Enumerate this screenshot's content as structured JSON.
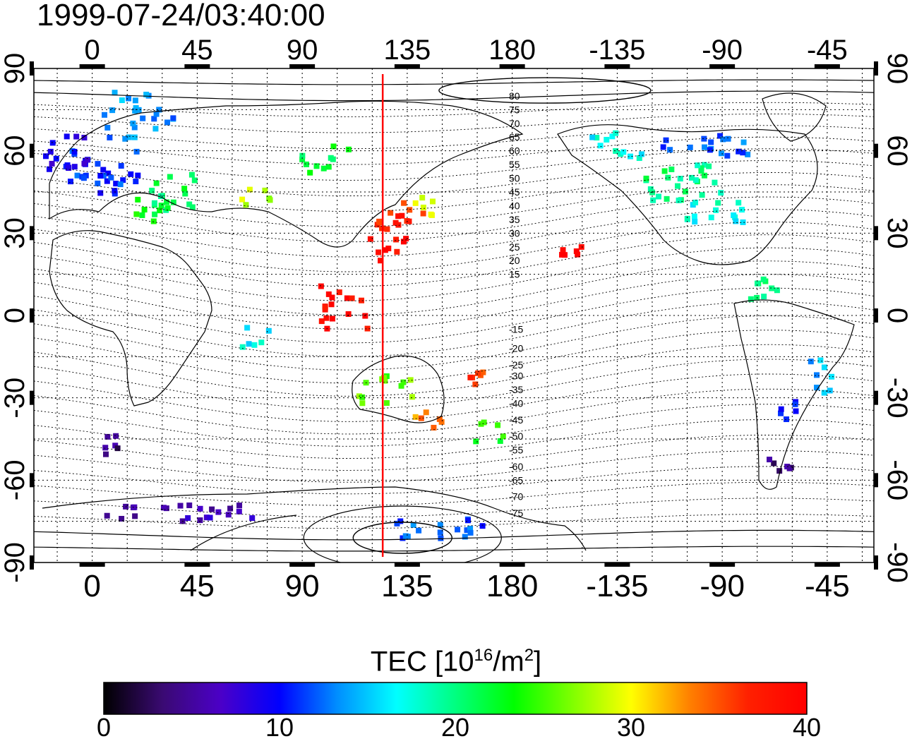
{
  "title": "1999-07-24/03:40:00",
  "map": {
    "top_lon_labels": [
      "0",
      "45",
      "90",
      "135",
      "180",
      "-135",
      "-90",
      "-45"
    ],
    "bottom_lon_labels": [
      "0",
      "45",
      "90",
      "135",
      "180",
      "-135",
      "-90",
      "-45"
    ],
    "left_lat_labels": [
      "90",
      "60",
      "30",
      "0",
      "-30",
      "-60",
      "-90"
    ],
    "right_lat_labels": [
      "90",
      "60",
      "30",
      "0",
      "-30",
      "-60",
      "-90"
    ],
    "lon_label_values": [
      0,
      45,
      90,
      135,
      180,
      225,
      270,
      315
    ],
    "lat_label_values": [
      90,
      60,
      30,
      0,
      -30,
      -60,
      -90
    ],
    "marker_longitude": 124.5,
    "marker_color": "#ff0000",
    "contour_labels_north": [
      "80",
      "75",
      "70",
      "65",
      "60",
      "55",
      "50",
      "45",
      "40",
      "35",
      "30",
      "25",
      "20",
      "15"
    ],
    "contour_labels_south": [
      "-15",
      "-20",
      "-25",
      "-30",
      "-35",
      "-40",
      "-45",
      "-50",
      "-55",
      "-60",
      "-65",
      "-70",
      "-75"
    ],
    "contour_label_lat_north": [
      80,
      75,
      70,
      65,
      60,
      55,
      50,
      45,
      40,
      35,
      30,
      25,
      20,
      15
    ],
    "contour_label_lat_south": [
      -5,
      -12,
      -18,
      -22,
      -27,
      -32,
      -38,
      -44,
      -49,
      -55,
      -60,
      -66,
      -72
    ]
  },
  "colorbar": {
    "title": "TEC  [10",
    "title_exp": "16",
    "title_mid": "/m",
    "title_exp2": "2",
    "title_end": "]",
    "min": 0,
    "max": 40,
    "tick_labels": [
      "0",
      "10",
      "20",
      "30",
      "40"
    ],
    "tick_values": [
      0,
      10,
      20,
      30,
      40
    ],
    "stops": [
      "#000000",
      "#3a0a72",
      "#4b00c8",
      "#0000ff",
      "#0090ff",
      "#00ffff",
      "#00ff80",
      "#00ff00",
      "#80ff00",
      "#ffff00",
      "#ff8000",
      "#ff2000",
      "#ff0000"
    ]
  },
  "tec_patches": [
    {
      "lon": 5,
      "lat": 52,
      "w": 30,
      "h": 18,
      "tec": 11
    },
    {
      "lon": -10,
      "lat": 60,
      "w": 20,
      "h": 14,
      "tec": 9
    },
    {
      "lon": 20,
      "lat": 70,
      "w": 30,
      "h": 12,
      "tec": 13
    },
    {
      "lon": 15,
      "lat": 80,
      "w": 20,
      "h": 5,
      "tec": 15
    },
    {
      "lon": 35,
      "lat": 45,
      "w": 20,
      "h": 14,
      "tec": 21
    },
    {
      "lon": 25,
      "lat": 38,
      "w": 16,
      "h": 10,
      "tec": 23
    },
    {
      "lon": 70,
      "lat": 43,
      "w": 16,
      "h": 6,
      "tec": 28
    },
    {
      "lon": 100,
      "lat": 57,
      "w": 20,
      "h": 10,
      "tec": 22
    },
    {
      "lon": 132,
      "lat": 36,
      "w": 22,
      "h": 12,
      "tec": 37
    },
    {
      "lon": 142,
      "lat": 40,
      "w": 14,
      "h": 8,
      "tec": 30
    },
    {
      "lon": 127,
      "lat": 25,
      "w": 16,
      "h": 10,
      "tec": 39
    },
    {
      "lon": 108,
      "lat": 3,
      "w": 20,
      "h": 16,
      "tec": 39
    },
    {
      "lon": 205,
      "lat": 23,
      "w": 10,
      "h": 5,
      "tec": 40
    },
    {
      "lon": 252,
      "lat": 48,
      "w": 36,
      "h": 14,
      "tec": 20
    },
    {
      "lon": 268,
      "lat": 38,
      "w": 26,
      "h": 10,
      "tec": 17
    },
    {
      "lon": 262,
      "lat": 62,
      "w": 40,
      "h": 8,
      "tec": 12
    },
    {
      "lon": 225,
      "lat": 62,
      "w": 22,
      "h": 10,
      "tec": 17
    },
    {
      "lon": 288,
      "lat": 10,
      "w": 12,
      "h": 14,
      "tec": 21
    },
    {
      "lon": 312,
      "lat": -22,
      "w": 10,
      "h": 14,
      "tec": 14
    },
    {
      "lon": 300,
      "lat": -35,
      "w": 10,
      "h": 8,
      "tec": 11
    },
    {
      "lon": 295,
      "lat": -55,
      "w": 12,
      "h": 6,
      "tec": 4
    },
    {
      "lon": 126,
      "lat": -27,
      "w": 24,
      "h": 10,
      "tec": 26
    },
    {
      "lon": 144,
      "lat": -38,
      "w": 12,
      "h": 6,
      "tec": 33
    },
    {
      "lon": 170,
      "lat": -42,
      "w": 14,
      "h": 8,
      "tec": 24
    },
    {
      "lon": 165,
      "lat": -23,
      "w": 6,
      "h": 5,
      "tec": 36
    },
    {
      "lon": 70,
      "lat": -8,
      "w": 14,
      "h": 8,
      "tec": 17
    },
    {
      "lon": 8,
      "lat": -48,
      "w": 6,
      "h": 10,
      "tec": 4
    },
    {
      "lon": 40,
      "lat": -72,
      "w": 70,
      "h": 6,
      "tec": 6
    },
    {
      "lon": 150,
      "lat": -78,
      "w": 40,
      "h": 8,
      "tec": 12
    }
  ]
}
